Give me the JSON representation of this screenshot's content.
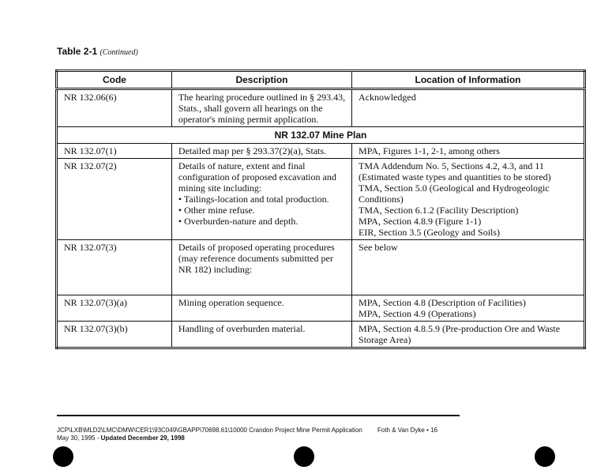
{
  "title": {
    "main": "Table 2-1",
    "sub": "(Continued)"
  },
  "headers": [
    "Code",
    "Description",
    "Location of Information"
  ],
  "rows": [
    {
      "code": "NR 132.06(6)",
      "desc": "The hearing procedure outlined in § 293.43, Stats., shall govern all hearings on the operator's mining permit application.",
      "loc": [
        "Acknowledged"
      ]
    },
    {
      "section": "NR 132.07  Mine Plan"
    },
    {
      "code": "NR 132.07(1)",
      "desc": "Detailed map per § 293.37(2)(a), Stats.",
      "loc": [
        "MPA, Figures 1-1, 2-1, among others"
      ]
    },
    {
      "code": "NR 132.07(2)",
      "desc": "Details of nature, extent and final configuration of proposed excavation and mining site including:",
      "bullets": [
        "Tailings-location and total production.",
        "Other mine refuse.",
        "Overburden-nature and depth."
      ],
      "loc": [
        "TMA Addendum No. 5, Sections 4.2, 4.3, and 11 (Estimated waste types and quantities to be stored)",
        "TMA, Section 5.0 (Geological and Hydrogeologic Conditions)",
        "TMA, Section 6.1.2 (Facility Description)",
        "MPA, Section 4.8.9 (Figure 1-1)",
        "EIR, Section 3.5 (Geology and Soils)"
      ]
    },
    {
      "code": "NR 132.07(3)",
      "desc": "Details of proposed operating procedures (may reference documents submitted per NR 182) including:",
      "loc": [
        "See below"
      ]
    },
    {
      "code": "NR 132.07(3)(a)",
      "desc": "Mining operation sequence.",
      "loc": [
        "MPA, Section 4.8 (Description of Facilities)",
        "MPA, Section 4.9 (Operations)"
      ]
    },
    {
      "code": "NR 132.07(3)(b)",
      "desc": "Handling of overburden material.",
      "loc": [
        "MPA, Section 4.8.5.9 (Pre-production Ore and Waste Storage Area)"
      ]
    }
  ],
  "footer": {
    "path": "JCP\\LXB\\MLD2\\LMC\\DMW\\CER1\\93C049\\GBAPP\\70698.61\\10000  Crandon Project Mine Permit Application",
    "date": "May 30, 1995 - ",
    "updated": "Updated December 29, 1998",
    "company": "Foth & Van Dyke • 16"
  }
}
